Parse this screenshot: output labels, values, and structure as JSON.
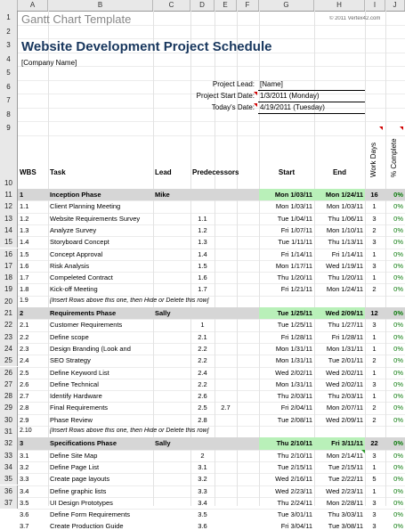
{
  "column_headers": [
    "A",
    "B",
    "C",
    "D",
    "E",
    "F",
    "G",
    "H",
    "I",
    "J"
  ],
  "top_title": "Gantt Chart Template",
  "copyright": "© 2011 Vertex42.com",
  "title": "Website Development Project Schedule",
  "company": "[Company Name]",
  "fields": {
    "project_lead_label": "Project Lead:",
    "project_lead_value": "[Name]",
    "start_date_label": "Project Start Date:",
    "start_date_value": "1/3/2011 (Monday)",
    "todays_date_label": "Today's Date:",
    "todays_date_value": "4/19/2011 (Tuesday)"
  },
  "header": {
    "wbs": "WBS",
    "task": "Task",
    "lead": "Lead",
    "predecessors": "Predecessors",
    "start": "Start",
    "end": "End",
    "work_days": "Work Days",
    "pct_complete": "% Complete"
  },
  "row_numbers": [
    "1",
    "2",
    "3",
    "4",
    "5",
    "6",
    "7",
    "8",
    "9",
    "10",
    "11",
    "12",
    "13",
    "14",
    "15",
    "16",
    "17",
    "18",
    "19",
    "20",
    "21",
    "22",
    "23",
    "24",
    "25",
    "26",
    "27",
    "28",
    "29",
    "30",
    "31",
    "32",
    "33",
    "34",
    "35",
    "36",
    "37"
  ],
  "tasks": [
    {
      "wbs": "1",
      "task": "Inception Phase",
      "lead": "Mike",
      "pred": "",
      "pred2": "",
      "start": "Mon 1/03/11",
      "end": "Mon 1/24/11",
      "days": "16",
      "pct": "0%",
      "phase": true
    },
    {
      "wbs": "1.1",
      "task": "Client Planning Meeting",
      "lead": "",
      "pred": "",
      "pred2": "",
      "start": "Mon 1/03/11",
      "end": "Mon 1/03/11",
      "days": "1",
      "pct": "0%"
    },
    {
      "wbs": "1.2",
      "task": "Website Requirements Survey",
      "lead": "",
      "pred": "1.1",
      "pred2": "",
      "start": "Tue 1/04/11",
      "end": "Thu 1/06/11",
      "days": "3",
      "pct": "0%"
    },
    {
      "wbs": "1.3",
      "task": "Analyze Survey",
      "lead": "",
      "pred": "1.2",
      "pred2": "",
      "start": "Fri 1/07/11",
      "end": "Mon 1/10/11",
      "days": "2",
      "pct": "0%"
    },
    {
      "wbs": "1.4",
      "task": "Storyboard Concept",
      "lead": "",
      "pred": "1.3",
      "pred2": "",
      "start": "Tue 1/11/11",
      "end": "Thu 1/13/11",
      "days": "3",
      "pct": "0%"
    },
    {
      "wbs": "1.5",
      "task": "Concept Approval",
      "lead": "",
      "pred": "1.4",
      "pred2": "",
      "start": "Fri 1/14/11",
      "end": "Fri 1/14/11",
      "days": "1",
      "pct": "0%"
    },
    {
      "wbs": "1.6",
      "task": "Risk Analysis",
      "lead": "",
      "pred": "1.5",
      "pred2": "",
      "start": "Mon 1/17/11",
      "end": "Wed 1/19/11",
      "days": "3",
      "pct": "0%"
    },
    {
      "wbs": "1.7",
      "task": "Compeleted Contract",
      "lead": "",
      "pred": "1.6",
      "pred2": "",
      "start": "Thu 1/20/11",
      "end": "Thu 1/20/11",
      "days": "1",
      "pct": "0%"
    },
    {
      "wbs": "1.8",
      "task": "Kick-off Meeting",
      "lead": "",
      "pred": "1.7",
      "pred2": "",
      "start": "Fri 1/21/11",
      "end": "Mon 1/24/11",
      "days": "2",
      "pct": "0%"
    },
    {
      "wbs": "1.9",
      "task": "[Insert Rows above this one, then Hide or Delete this row]",
      "lead": "",
      "pred": "",
      "pred2": "",
      "start": "",
      "end": "",
      "days": "",
      "pct": "",
      "note": true
    },
    {
      "wbs": "2",
      "task": "Requirements Phase",
      "lead": "Sally",
      "pred": "",
      "pred2": "",
      "start": "Tue 1/25/11",
      "end": "Wed 2/09/11",
      "days": "12",
      "pct": "0%",
      "phase": true
    },
    {
      "wbs": "2.1",
      "task": "Customer Requirements",
      "lead": "",
      "pred": "1",
      "pred2": "",
      "start": "Tue 1/25/11",
      "end": "Thu 1/27/11",
      "days": "3",
      "pct": "0%"
    },
    {
      "wbs": "2.2",
      "task": "Define scope",
      "lead": "",
      "pred": "2.1",
      "pred2": "",
      "start": "Fri 1/28/11",
      "end": "Fri 1/28/11",
      "days": "1",
      "pct": "0%"
    },
    {
      "wbs": "2.3",
      "task": "Design Branding (Look and",
      "lead": "",
      "pred": "2.2",
      "pred2": "",
      "start": "Mon 1/31/11",
      "end": "Mon 1/31/11",
      "days": "1",
      "pct": "0%"
    },
    {
      "wbs": "2.4",
      "task": "SEO Strategy",
      "lead": "",
      "pred": "2.2",
      "pred2": "",
      "start": "Mon 1/31/11",
      "end": "Tue 2/01/11",
      "days": "2",
      "pct": "0%"
    },
    {
      "wbs": "2.5",
      "task": "Define Keyword List",
      "lead": "",
      "pred": "2.4",
      "pred2": "",
      "start": "Wed 2/02/11",
      "end": "Wed 2/02/11",
      "days": "1",
      "pct": "0%"
    },
    {
      "wbs": "2.6",
      "task": "Define Technical",
      "lead": "",
      "pred": "2.2",
      "pred2": "",
      "start": "Mon 1/31/11",
      "end": "Wed 2/02/11",
      "days": "3",
      "pct": "0%"
    },
    {
      "wbs": "2.7",
      "task": "Identify Hardware",
      "lead": "",
      "pred": "2.6",
      "pred2": "",
      "start": "Thu 2/03/11",
      "end": "Thu 2/03/11",
      "days": "1",
      "pct": "0%"
    },
    {
      "wbs": "2.8",
      "task": "Final Requirements",
      "lead": "",
      "pred": "2.5",
      "pred2": "2.7",
      "start": "Fri 2/04/11",
      "end": "Mon 2/07/11",
      "days": "2",
      "pct": "0%"
    },
    {
      "wbs": "2.9",
      "task": "Phase Review",
      "lead": "",
      "pred": "2.8",
      "pred2": "",
      "start": "Tue 2/08/11",
      "end": "Wed 2/09/11",
      "days": "2",
      "pct": "0%"
    },
    {
      "wbs": "2.10",
      "task": "[Insert Rows above this one, then Hide or Delete this row]",
      "lead": "",
      "pred": "",
      "pred2": "",
      "start": "",
      "end": "",
      "days": "",
      "pct": "",
      "note": true
    },
    {
      "wbs": "3",
      "task": "Specifications Phase",
      "lead": "Sally",
      "pred": "",
      "pred2": "",
      "start": "Thu 2/10/11",
      "end": "Fri 3/11/11",
      "days": "22",
      "pct": "0%",
      "phase": true
    },
    {
      "wbs": "3.1",
      "task": "Define Site Map",
      "lead": "",
      "pred": "2",
      "pred2": "",
      "start": "Thu 2/10/11",
      "end": "Mon 2/14/11",
      "days": "3",
      "pct": "0%"
    },
    {
      "wbs": "3.2",
      "task": "Define Page List",
      "lead": "",
      "pred": "3.1",
      "pred2": "",
      "start": "Tue 2/15/11",
      "end": "Tue 2/15/11",
      "days": "1",
      "pct": "0%"
    },
    {
      "wbs": "3.3",
      "task": "Create page layouts",
      "lead": "",
      "pred": "3.2",
      "pred2": "",
      "start": "Wed 2/16/11",
      "end": "Tue 2/22/11",
      "days": "5",
      "pct": "0%"
    },
    {
      "wbs": "3.4",
      "task": "Define graphic lists",
      "lead": "",
      "pred": "3.3",
      "pred2": "",
      "start": "Wed 2/23/11",
      "end": "Wed 2/23/11",
      "days": "1",
      "pct": "0%"
    },
    {
      "wbs": "3.5",
      "task": "UI Design Prototypes",
      "lead": "",
      "pred": "3.4",
      "pred2": "",
      "start": "Thu 2/24/11",
      "end": "Mon 2/28/11",
      "days": "3",
      "pct": "0%"
    },
    {
      "wbs": "3.6",
      "task": "Define Form Requirements",
      "lead": "",
      "pred": "3.5",
      "pred2": "",
      "start": "Tue 3/01/11",
      "end": "Thu 3/03/11",
      "days": "3",
      "pct": "0%"
    },
    {
      "wbs": "3.7",
      "task": "Create Production Guide",
      "lead": "",
      "pred": "3.6",
      "pred2": "",
      "start": "Fri 3/04/11",
      "end": "Tue 3/08/11",
      "days": "3",
      "pct": "0%"
    }
  ]
}
